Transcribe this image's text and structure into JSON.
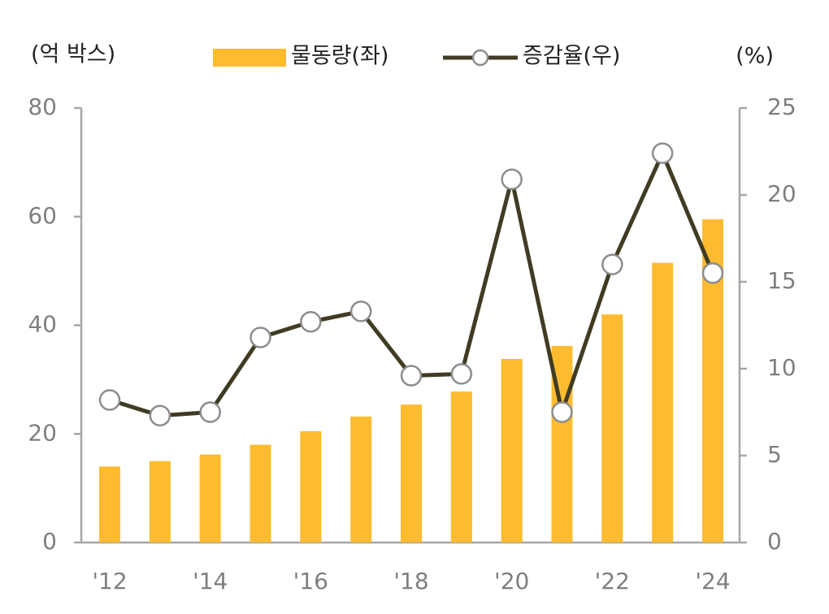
{
  "chart_data": {
    "type": "combo",
    "ylabel": "(억 박스)",
    "y2label": "(%)",
    "categories": [
      "'12",
      null,
      "'14",
      null,
      "'16",
      null,
      "'18",
      null,
      "'20",
      null,
      "'22",
      null,
      "'24"
    ],
    "series": [
      {
        "name": "물동량(좌)",
        "type": "bar",
        "color": "#fdbb2f",
        "values": [
          14,
          15,
          16.2,
          18,
          20.5,
          23.2,
          25.4,
          27.8,
          33.8,
          36.2,
          42,
          51.5,
          59.5
        ]
      },
      {
        "name": "증감율(우)",
        "type": "line",
        "axis": "y2",
        "color": "#403b23",
        "values": [
          8.2,
          7.3,
          7.5,
          11.8,
          12.7,
          13.3,
          9.6,
          9.7,
          20.9,
          7.5,
          16.0,
          22.4,
          15.5
        ]
      }
    ],
    "ylim": [
      0,
      80
    ],
    "yticks": [
      0,
      20,
      40,
      60,
      80
    ],
    "y2lim": [
      0,
      25
    ],
    "y2ticks": [
      0,
      5,
      10,
      15,
      20,
      25
    ]
  }
}
